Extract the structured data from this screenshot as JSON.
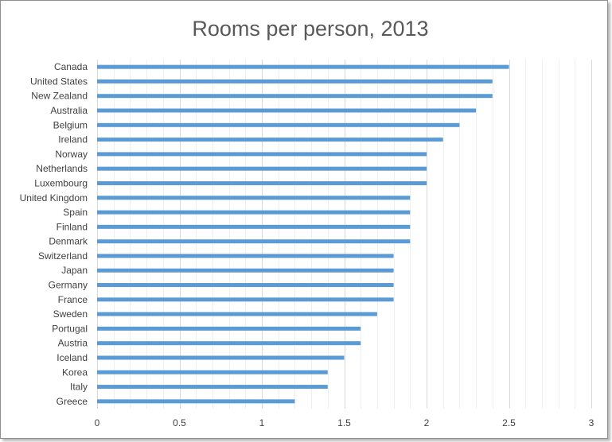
{
  "chart_data": {
    "type": "bar",
    "orientation": "horizontal",
    "title": "Rooms per person, 2013",
    "xlabel": "",
    "ylabel": "",
    "categories": [
      "Canada",
      "United States",
      "New Zealand",
      "Australia",
      "Belgium",
      "Ireland",
      "Norway",
      "Netherlands",
      "Luxembourg",
      "United Kingdom",
      "Spain",
      "Finland",
      "Denmark",
      "Switzerland",
      "Japan",
      "Germany",
      "France",
      "Sweden",
      "Portugal",
      "Austria",
      "Iceland",
      "Korea",
      "Italy",
      "Greece"
    ],
    "values": [
      2.5,
      2.4,
      2.4,
      2.3,
      2.2,
      2.1,
      2.0,
      2.0,
      2.0,
      1.9,
      1.9,
      1.9,
      1.9,
      1.8,
      1.8,
      1.8,
      1.8,
      1.7,
      1.6,
      1.6,
      1.5,
      1.4,
      1.4,
      1.2
    ],
    "xlim": [
      0,
      3
    ],
    "xticks": [
      0,
      0.5,
      1,
      1.5,
      2,
      2.5,
      3
    ],
    "xtick_labels": [
      "0",
      "0.5",
      "1",
      "1.5",
      "2",
      "2.5",
      "3"
    ],
    "grid": "vertical",
    "legend": "none",
    "colors": {
      "bar": "#5b9bd5",
      "gridline": "#d9d9d9",
      "text": "#404040",
      "title": "#595959"
    }
  }
}
